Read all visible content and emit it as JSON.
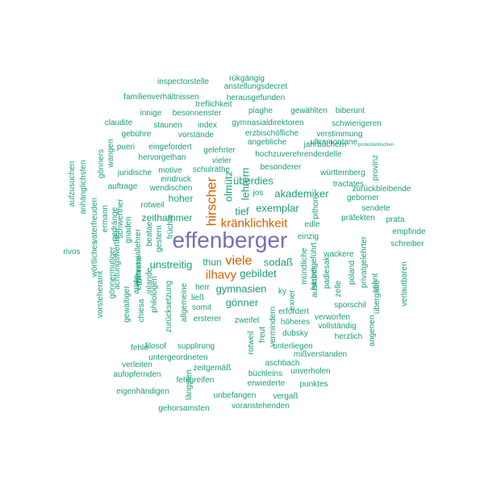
{
  "colors": {
    "primary": "#7570b3",
    "secondary": "#d95f02",
    "tertiary": "#1b9e77"
  },
  "words": [
    {
      "text": "effenberger",
      "tier": "primary"
    },
    {
      "text": "hirscher",
      "tier": "secondary"
    },
    {
      "text": "kränklichkeit",
      "tier": "secondary"
    },
    {
      "text": "viele",
      "tier": "secondary"
    },
    {
      "text": "ilhavy",
      "tier": "secondary"
    },
    {
      "text": "rükgängig",
      "tier": "tertiary"
    },
    {
      "text": "inspectorstelle",
      "tier": "tertiary"
    },
    {
      "text": "anstellungsdecret",
      "tier": "tertiary"
    },
    {
      "text": "familienverhältnissen",
      "tier": "tertiary"
    },
    {
      "text": "herausgefunden",
      "tier": "tertiary"
    },
    {
      "text": "treflichkeit",
      "tier": "tertiary"
    },
    {
      "text": "piaghe",
      "tier": "tertiary"
    },
    {
      "text": "gewählten",
      "tier": "tertiary"
    },
    {
      "text": "biberunt",
      "tier": "tertiary"
    },
    {
      "text": "innige",
      "tier": "tertiary"
    },
    {
      "text": "besonnenster",
      "tier": "tertiary"
    },
    {
      "text": "claudite",
      "tier": "tertiary"
    },
    {
      "text": "gymnasialdirektoren",
      "tier": "tertiary"
    },
    {
      "text": "staunen",
      "tier": "tertiary"
    },
    {
      "text": "index",
      "tier": "tertiary"
    },
    {
      "text": "schwierigeren",
      "tier": "tertiary"
    },
    {
      "text": "gebühre",
      "tier": "tertiary"
    },
    {
      "text": "vorstände",
      "tier": "tertiary"
    },
    {
      "text": "erzbischöfliche",
      "tier": "tertiary"
    },
    {
      "text": "verstimmung",
      "tier": "tertiary"
    },
    {
      "text": "angebliche",
      "tier": "tertiary"
    },
    {
      "text": "jahrbüchern",
      "tier": "tertiary"
    },
    {
      "text": "protestantischen",
      "tier": "tertiary"
    },
    {
      "text": "pueri",
      "tier": "tertiary"
    },
    {
      "text": "eingefordert",
      "tier": "tertiary"
    },
    {
      "text": "ultramontane",
      "tier": "tertiary"
    },
    {
      "text": "hervorgethan",
      "tier": "tertiary"
    },
    {
      "text": "gelehrter",
      "tier": "tertiary"
    },
    {
      "text": "hochzuverehrenderdelle",
      "tier": "tertiary"
    },
    {
      "text": "gönners",
      "tier": "tertiary"
    },
    {
      "text": "wangen",
      "tier": "tertiary"
    },
    {
      "text": "vieler",
      "tier": "tertiary"
    },
    {
      "text": "besonderer",
      "tier": "tertiary"
    },
    {
      "text": "motive",
      "tier": "tertiary"
    },
    {
      "text": "schulräthe",
      "tier": "tertiary"
    },
    {
      "text": "württemberg",
      "tier": "tertiary"
    },
    {
      "text": "provinz",
      "tier": "tertiary"
    },
    {
      "text": "juridische",
      "tier": "tertiary"
    },
    {
      "text": "eindruck",
      "tier": "tertiary"
    },
    {
      "text": "überdies",
      "tier": "tertiary"
    },
    {
      "text": "tractates",
      "tier": "tertiary"
    },
    {
      "text": "zurückbleibende",
      "tier": "tertiary"
    },
    {
      "text": "auftrage",
      "tier": "tertiary"
    },
    {
      "text": "wendischen",
      "tier": "tertiary"
    },
    {
      "text": "olmütz",
      "tier": "tertiary"
    },
    {
      "text": "lehrern",
      "tier": "tertiary"
    },
    {
      "text": "jos",
      "tier": "tertiary"
    },
    {
      "text": "akademiker",
      "tier": "tertiary"
    },
    {
      "text": "geborner",
      "tier": "tertiary"
    },
    {
      "text": "aufzusuchen",
      "tier": "tertiary"
    },
    {
      "text": "anhänglichsten",
      "tier": "tertiary"
    },
    {
      "text": "hoher",
      "tier": "tertiary"
    },
    {
      "text": "rotweil",
      "tier": "tertiary"
    },
    {
      "text": "tief",
      "tier": "tertiary"
    },
    {
      "text": "exemplar",
      "tier": "tertiary"
    },
    {
      "text": "pithon",
      "tier": "tertiary"
    },
    {
      "text": "sendete",
      "tier": "tertiary"
    },
    {
      "text": "zeithammer",
      "tier": "tertiary"
    },
    {
      "text": "edle",
      "tier": "tertiary"
    },
    {
      "text": "präfekten",
      "tier": "tertiary"
    },
    {
      "text": "prata",
      "tier": "tertiary"
    },
    {
      "text": "vaterfreuden",
      "tier": "tertiary"
    },
    {
      "text": "ermann",
      "tier": "tertiary"
    },
    {
      "text": "gedränge",
      "tier": "tertiary"
    },
    {
      "text": "schwerther",
      "tier": "tertiary"
    },
    {
      "text": "gnaden",
      "tier": "tertiary"
    },
    {
      "text": "beatae",
      "tier": "tertiary"
    },
    {
      "text": "gestern",
      "tier": "tertiary"
    },
    {
      "text": "früchte",
      "tier": "tertiary"
    },
    {
      "text": "einzig",
      "tier": "tertiary"
    },
    {
      "text": "empfinde",
      "tier": "tertiary"
    },
    {
      "text": "rivos",
      "tier": "tertiary"
    },
    {
      "text": "unstreitig",
      "tier": "tertiary"
    },
    {
      "text": "schreiber",
      "tier": "tertiary"
    },
    {
      "text": "sodaß",
      "tier": "tertiary"
    },
    {
      "text": "thun",
      "tier": "tertiary"
    },
    {
      "text": "wackere",
      "tier": "tertiary"
    },
    {
      "text": "gymnasiallehrer",
      "tier": "tertiary"
    },
    {
      "text": "achtungswerther",
      "tier": "tertiary"
    },
    {
      "text": "gebildet",
      "tier": "tertiary"
    },
    {
      "text": "herbeigeführt",
      "tier": "tertiary"
    },
    {
      "text": "verlautbaren",
      "tier": "tertiary"
    },
    {
      "text": "wörtliches",
      "tier": "tertiary"
    },
    {
      "text": "erfahrene",
      "tier": "tertiary"
    },
    {
      "text": "mündliche",
      "tier": "tertiary"
    },
    {
      "text": "padlesak",
      "tier": "tertiary"
    },
    {
      "text": "poland",
      "tier": "tertiary"
    },
    {
      "text": "privatgelehrter",
      "tier": "tertiary"
    },
    {
      "text": "vorsteheramt",
      "tier": "tertiary"
    },
    {
      "text": "gönnermutiger",
      "tier": "tertiary"
    },
    {
      "text": "arnte",
      "tier": "tertiary"
    },
    {
      "text": "inlande",
      "tier": "tertiary"
    },
    {
      "text": "herr",
      "tier": "tertiary"
    },
    {
      "text": "gymnasien",
      "tier": "tertiary"
    },
    {
      "text": "auskunft",
      "tier": "tertiary"
    },
    {
      "text": "zelle",
      "tier": "tertiary"
    },
    {
      "text": "sehnt",
      "tier": "tertiary"
    },
    {
      "text": "gewaltiger",
      "tier": "tertiary"
    },
    {
      "text": "philologen",
      "tier": "tertiary"
    },
    {
      "text": "ließ",
      "tier": "tertiary"
    },
    {
      "text": "ky",
      "tier": "tertiary"
    },
    {
      "text": "gönner",
      "tier": "tertiary"
    },
    {
      "text": "sporschil",
      "tier": "tertiary"
    },
    {
      "text": "übergabe",
      "tier": "tertiary"
    },
    {
      "text": "exner",
      "tier": "tertiary"
    },
    {
      "text": "somit",
      "tier": "tertiary"
    },
    {
      "text": "erfordert",
      "tier": "tertiary"
    },
    {
      "text": "verworfen",
      "tier": "tertiary"
    },
    {
      "text": "zurücksetzung",
      "tier": "tertiary"
    },
    {
      "text": "allgemeine",
      "tier": "tertiary"
    },
    {
      "text": "ersterer",
      "tier": "tertiary"
    },
    {
      "text": "zweifel",
      "tier": "tertiary"
    },
    {
      "text": "höheres",
      "tier": "tertiary"
    },
    {
      "text": "vollständig",
      "tier": "tertiary"
    },
    {
      "text": "chiesa",
      "tier": "tertiary"
    },
    {
      "text": "vermindern",
      "tier": "tertiary"
    },
    {
      "text": "dubsky",
      "tier": "tertiary"
    },
    {
      "text": "herzlich",
      "tier": "tertiary"
    },
    {
      "text": "angenen",
      "tier": "tertiary"
    },
    {
      "text": "filosof",
      "tier": "tertiary"
    },
    {
      "text": "supplirung",
      "tier": "tertiary"
    },
    {
      "text": "fehle",
      "tier": "tertiary"
    },
    {
      "text": "freut",
      "tier": "tertiary"
    },
    {
      "text": "unterliegen",
      "tier": "tertiary"
    },
    {
      "text": "mißverstanden",
      "tier": "tertiary"
    },
    {
      "text": "rotweil",
      "tier": "tertiary"
    },
    {
      "text": "untergeordneten",
      "tier": "tertiary"
    },
    {
      "text": "aschbach",
      "tier": "tertiary"
    },
    {
      "text": "verleiten",
      "tier": "tertiary"
    },
    {
      "text": "zeitgemäß",
      "tier": "tertiary"
    },
    {
      "text": "büchleins",
      "tier": "tertiary"
    },
    {
      "text": "unverholen",
      "tier": "tertiary"
    },
    {
      "text": "aufopfernden",
      "tier": "tertiary"
    },
    {
      "text": "fehlgreifen",
      "tier": "tertiary"
    },
    {
      "text": "erwiederte",
      "tier": "tertiary"
    },
    {
      "text": "punktes",
      "tier": "tertiary"
    },
    {
      "text": "eigenhändigen",
      "tier": "tertiary"
    },
    {
      "text": "längsten",
      "tier": "tertiary"
    },
    {
      "text": "unbefangen",
      "tier": "tertiary"
    },
    {
      "text": "vergaß",
      "tier": "tertiary"
    },
    {
      "text": "gehorsamsten",
      "tier": "tertiary"
    },
    {
      "text": "voranstehenden",
      "tier": "tertiary"
    }
  ]
}
